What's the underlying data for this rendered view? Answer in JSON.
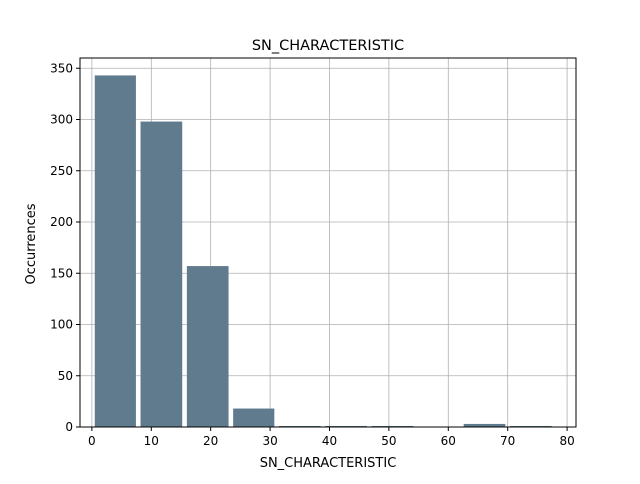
{
  "chart_data": {
    "type": "bar",
    "title": "SN_CHARACTERISTIC",
    "xlabel": "SN_CHARACTERISTIC",
    "ylabel": "Occurrences",
    "bar_color": "#607b8e",
    "grid": true,
    "xlim": [
      -2,
      81.5
    ],
    "ylim": [
      0,
      360
    ],
    "xticks": [
      0,
      10,
      20,
      30,
      40,
      50,
      60,
      70,
      80
    ],
    "yticks": [
      0,
      50,
      100,
      150,
      200,
      250,
      300,
      350
    ],
    "bins": [
      {
        "x_start": 0.1,
        "x_end": 7.8,
        "value": 343
      },
      {
        "x_start": 7.8,
        "x_end": 15.6,
        "value": 298
      },
      {
        "x_start": 15.6,
        "x_end": 23.4,
        "value": 157
      },
      {
        "x_start": 23.4,
        "x_end": 31.1,
        "value": 18
      },
      {
        "x_start": 31.1,
        "x_end": 38.9,
        "value": 1
      },
      {
        "x_start": 38.9,
        "x_end": 46.7,
        "value": 1
      },
      {
        "x_start": 46.7,
        "x_end": 54.5,
        "value": 1
      },
      {
        "x_start": 54.5,
        "x_end": 62.2,
        "value": 0
      },
      {
        "x_start": 62.2,
        "x_end": 70.0,
        "value": 3
      },
      {
        "x_start": 70.0,
        "x_end": 77.8,
        "value": 1
      }
    ]
  }
}
